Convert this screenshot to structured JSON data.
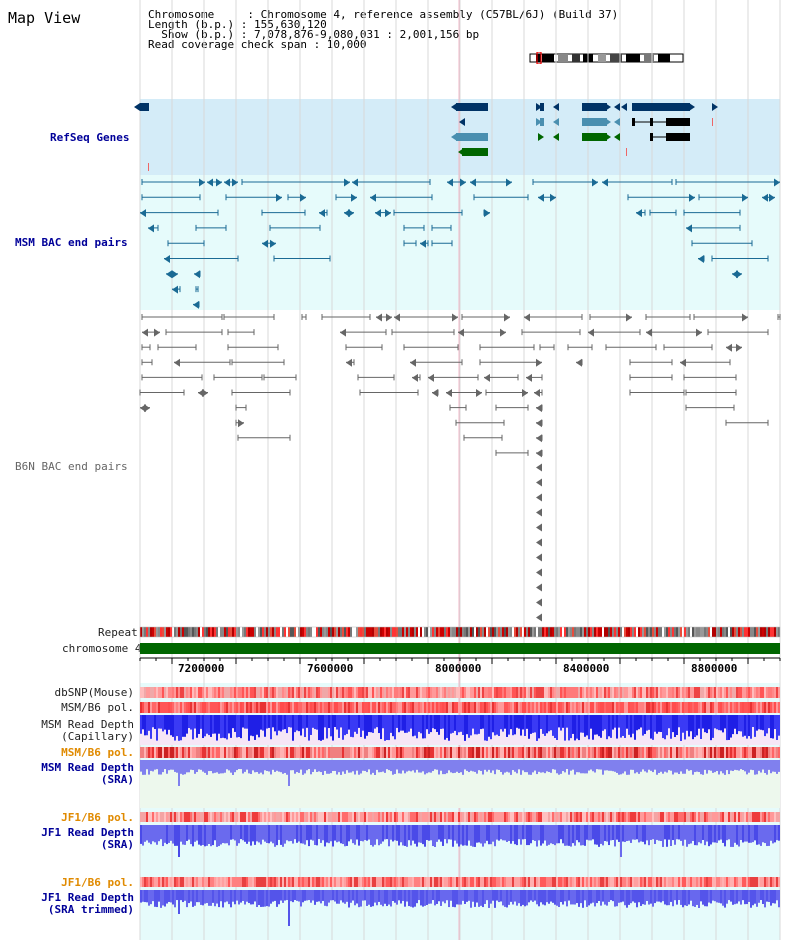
{
  "page": {
    "title": "Map View"
  },
  "header": {
    "line1": "Chromosome     : Chromosome 4, reference assembly (C57BL/6J) (Build 37)",
    "line2": "Length (b.p.) : 155,630,120",
    "line3": "  Show (b.p.) : 7,078,876-9,080,031 : 2,001,156 bp",
    "line4": "Read coverage check span : 10,000"
  },
  "tracks": {
    "refseq": "RefSeq Genes",
    "msm_bac": "MSM BAC end pairs",
    "b6n_bac": "B6N BAC end pairs",
    "repeat": "Repeat",
    "chromosome": "chromosome 4",
    "dbsnp": "dbSNP(Mouse)",
    "msm_b6_pol_1": "MSM/B6 pol.",
    "msm_read_depth_cap_1": "MSM Read Depth",
    "msm_read_depth_cap_2": "(Capillary)",
    "msm_b6_pol_2": "MSM/B6 pol.",
    "msm_read_depth_sra_1": "MSM Read Depth",
    "msm_read_depth_sra_2": "(SRA)",
    "jf1_b6_pol_1": "JF1/B6 pol.",
    "jf1_read_depth_sra_1": "JF1 Read Depth",
    "jf1_read_depth_sra_2": "(SRA)",
    "jf1_b6_pol_2": "JF1/B6 pol.",
    "jf1_read_depth_trim_1": "JF1 Read Depth",
    "jf1_read_depth_trim_2": "(SRA trimmed)"
  },
  "axis": {
    "ticks": [
      "7200000",
      "7600000",
      "8000000",
      "8400000",
      "8800000"
    ]
  },
  "colors": {
    "refseq_bg": "#d4ecf8",
    "bac_bg": "#e6fbfb",
    "navy": "#003366",
    "steel": "#4a8fb0",
    "green": "#006600",
    "gray": "#666666",
    "chrom_green": "#006600",
    "depth_blue": "#1a1ae6",
    "depth_light": "#7a7af0"
  }
}
